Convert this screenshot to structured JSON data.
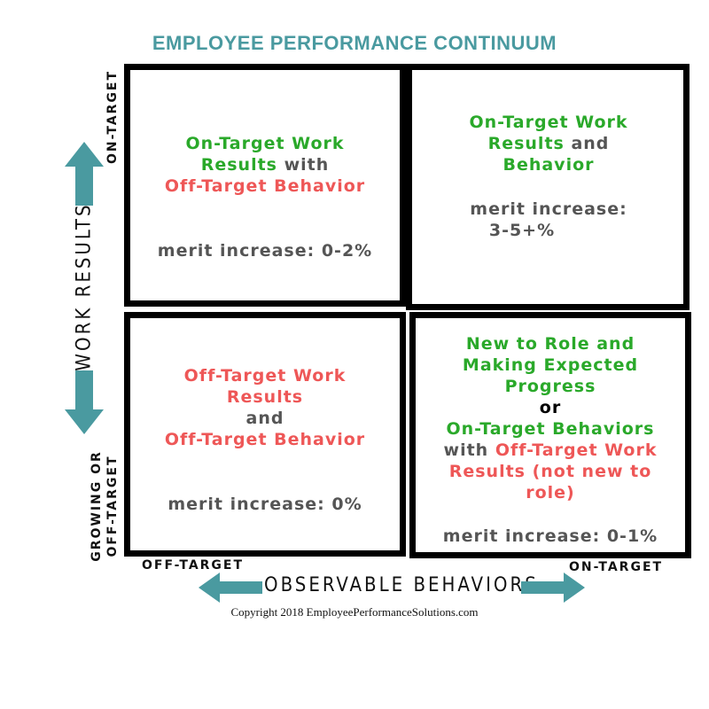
{
  "title": "EMPLOYEE PERFORMANCE CONTINUUM",
  "y_axis": {
    "label": "WORK RESULTS",
    "top_label": "ON-TARGET",
    "bottom_label_line1": "GROWING OR",
    "bottom_label_line2": "OFF-TARGET"
  },
  "x_axis": {
    "label": "OBSERVABLE BEHAVIORS",
    "left_label": "OFF-TARGET",
    "right_label": "ON-TARGET"
  },
  "quadrants": {
    "top_left": {
      "line1": "On-Target Work",
      "line2a": "Results",
      "line2b": " with",
      "line3": "Off-Target Behavior",
      "merit": "merit increase: 0-2%"
    },
    "top_right": {
      "line1": "On-Target Work",
      "line2a": "Results",
      "line2b": " and",
      "line3": "Behavior",
      "merit_line1": "merit increase:",
      "merit_line2": "3-5+%"
    },
    "bottom_left": {
      "line1": "Off-Target Work",
      "line2": "Results",
      "line3": "and",
      "line4": "Off-Target Behavior",
      "merit": "merit increase: 0%"
    },
    "bottom_right": {
      "line1": "New to Role and",
      "line2": "Making Expected",
      "line3": "Progress",
      "line4": "or",
      "line5": "On-Target Behaviors",
      "line6a": "with ",
      "line6b": "Off-Target Work",
      "line7": "Results (not new to",
      "line8": "role)",
      "merit": "merit increase: 0-1%"
    }
  },
  "copyright": "Copyright 2018 EmployeePerformanceSolutions.com",
  "colors": {
    "teal": "#4a9aa0",
    "green": "#2aa92a",
    "red": "#ee5757",
    "gray": "#555555"
  }
}
